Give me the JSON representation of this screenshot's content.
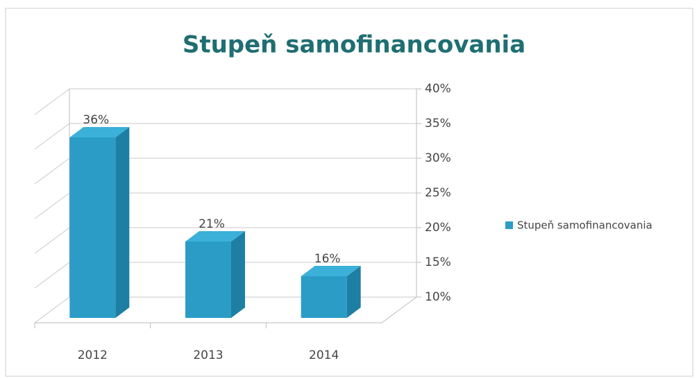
{
  "chart_data": {
    "type": "bar3d",
    "title": "Stupeň samofinancovania",
    "categories": [
      "2012",
      "2013",
      "2014"
    ],
    "series": [
      {
        "name": "Stupeň samofinancovania",
        "color": "#2b9cc6",
        "values": [
          36,
          21,
          16
        ],
        "value_labels": [
          "36%",
          "21%",
          "16%"
        ]
      }
    ],
    "ylim": [
      10,
      40
    ],
    "yticks": [
      {
        "value": 10,
        "label": "10%"
      },
      {
        "value": 15,
        "label": "15%"
      },
      {
        "value": 20,
        "label": "20%"
      },
      {
        "value": 25,
        "label": "25%"
      },
      {
        "value": 30,
        "label": "30%"
      },
      {
        "value": 35,
        "label": "35%"
      },
      {
        "value": 40,
        "label": "40%"
      }
    ],
    "grid": true,
    "legend": "right"
  }
}
